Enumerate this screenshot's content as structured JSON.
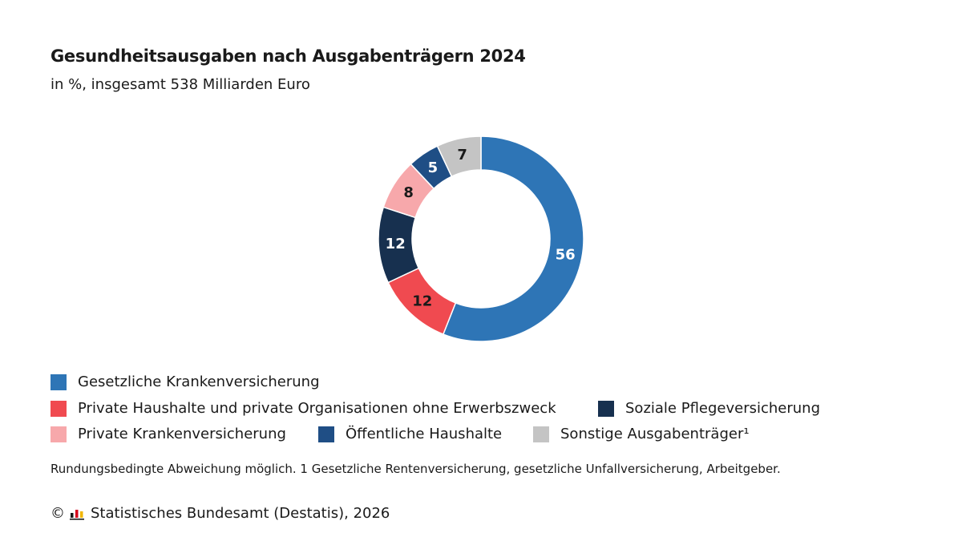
{
  "title": "Gesundheitsausgaben nach Ausgabenträgern 2024",
  "subtitle": "in %, insgesamt 538 Milliarden Euro",
  "note": "Rundungsbedingte Abweichung möglich. 1 Gesetzliche Rentenversicherung, gesetzliche Unfallversicherung, Arbeitgeber.",
  "footer": {
    "copyright_symbol": "©",
    "source": "Statistisches Bundesamt (Destatis), 2026",
    "logo_icon": "destatis-logo-icon"
  },
  "chart_data": {
    "type": "pie",
    "style": "donut",
    "categories": [
      "Gesetzliche Krankenversicherung",
      "Private Haushalte und private Organisationen ohne Erwerbszweck",
      "Soziale Pflegeversicherung",
      "Private Krankenversicherung",
      "Öffentliche Haushalte",
      "Sonstige Ausgabenträger¹"
    ],
    "values": [
      56,
      12,
      12,
      8,
      5,
      7
    ],
    "colors": [
      "#2e75b6",
      "#f04a50",
      "#17304f",
      "#f7a8ab",
      "#1f4e85",
      "#c4c4c4"
    ],
    "label_colors": [
      "#ffffff",
      "#1a1a1a",
      "#ffffff",
      "#1a1a1a",
      "#ffffff",
      "#1a1a1a"
    ],
    "legend_placement": "bottom"
  }
}
